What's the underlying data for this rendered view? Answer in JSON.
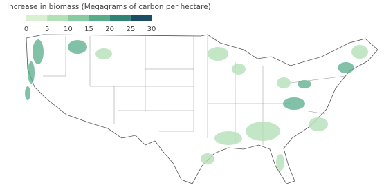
{
  "legend": {
    "title": "Increase in biomass (Megagrams of carbon per hectare)",
    "ticks": [
      0,
      5,
      10,
      15,
      20,
      25,
      30
    ],
    "colors": [
      "#ffffff",
      "#d9f0d3",
      "#b4e0b8",
      "#86cba1",
      "#57ad8a",
      "#2f8473",
      "#1a4f63"
    ]
  }
}
